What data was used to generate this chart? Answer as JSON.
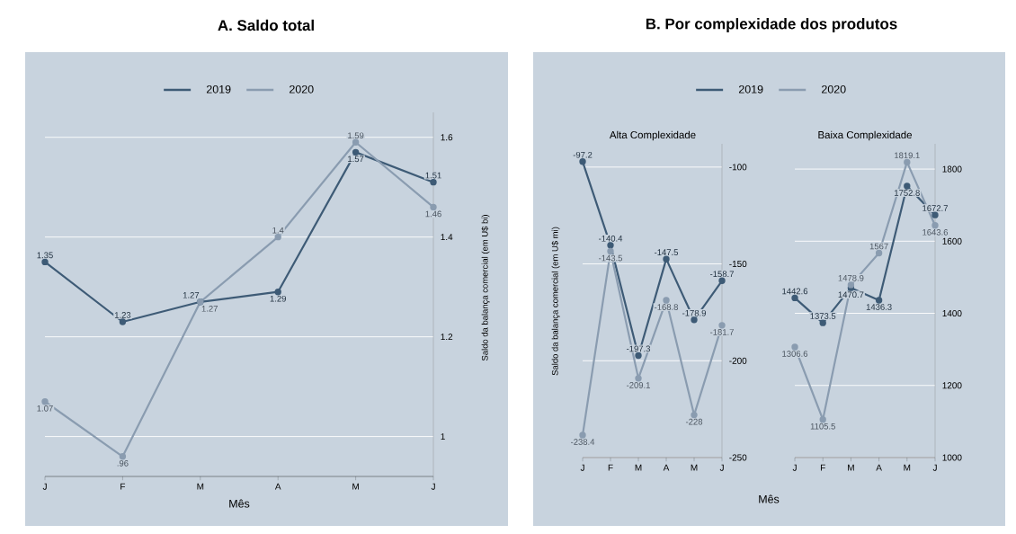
{
  "chart_data": [
    {
      "type": "line",
      "title": "A. Saldo total",
      "xlabel": "Mês",
      "ylabel": "Saldo da balança comercial (em U$ bi)",
      "categories": [
        "J",
        "F",
        "M",
        "A",
        "M",
        "J"
      ],
      "ylim": [
        0.92,
        1.65
      ],
      "yticks": [
        1,
        1.2,
        1.4,
        1.6
      ],
      "grid": "y",
      "legend": "top",
      "marker": "circle",
      "data_labels": true,
      "series": [
        {
          "name": "2019",
          "color": "#3e5b76",
          "values": [
            1.35,
            1.23,
            1.27,
            1.29,
            1.57,
            1.51
          ]
        },
        {
          "name": "2020",
          "color": "#8a9cb0",
          "values": [
            1.07,
            0.96,
            1.27,
            1.4,
            1.59,
            1.46
          ],
          "value_labels": [
            "1.07",
            ".96",
            "1.27",
            "1.4",
            "1.59",
            "1.46"
          ]
        }
      ]
    },
    {
      "type": "line",
      "title": "B. Por complexidade dos produtos",
      "subtitle": "Alta Complexidade",
      "xlabel": "Mês",
      "ylabel": "Saldo da balança comercial (em U$ mi)",
      "categories": [
        "J",
        "F",
        "M",
        "A",
        "M",
        "J"
      ],
      "ylim": [
        -250,
        -88
      ],
      "yticks": [
        -100,
        -150,
        -200,
        -250
      ],
      "grid": "y",
      "legend": "top",
      "marker": "circle",
      "data_labels": true,
      "series": [
        {
          "name": "2019",
          "color": "#3e5b76",
          "values": [
            -97.2,
            -140.4,
            -197.3,
            -147.5,
            -178.9,
            -158.7
          ]
        },
        {
          "name": "2020",
          "color": "#8a9cb0",
          "values": [
            -238.4,
            -143.5,
            -209.1,
            -168.8,
            -228,
            -181.7
          ]
        }
      ]
    },
    {
      "type": "line",
      "subtitle": "Baixa Complexidade",
      "categories": [
        "J",
        "F",
        "M",
        "A",
        "M",
        "J"
      ],
      "ylim": [
        1000,
        1870
      ],
      "yticks": [
        1000,
        1200,
        1400,
        1600,
        1800
      ],
      "grid": "y",
      "marker": "circle",
      "data_labels": true,
      "series": [
        {
          "color": "#3e5b76",
          "values": [
            1442.6,
            1373.5,
            1470.7,
            1436.3,
            1752.8,
            1672.7
          ]
        },
        {
          "color": "#8a9cb0",
          "values": [
            1306.6,
            1105.5,
            1478.9,
            1567,
            1819.1,
            1643.6
          ]
        }
      ]
    }
  ]
}
